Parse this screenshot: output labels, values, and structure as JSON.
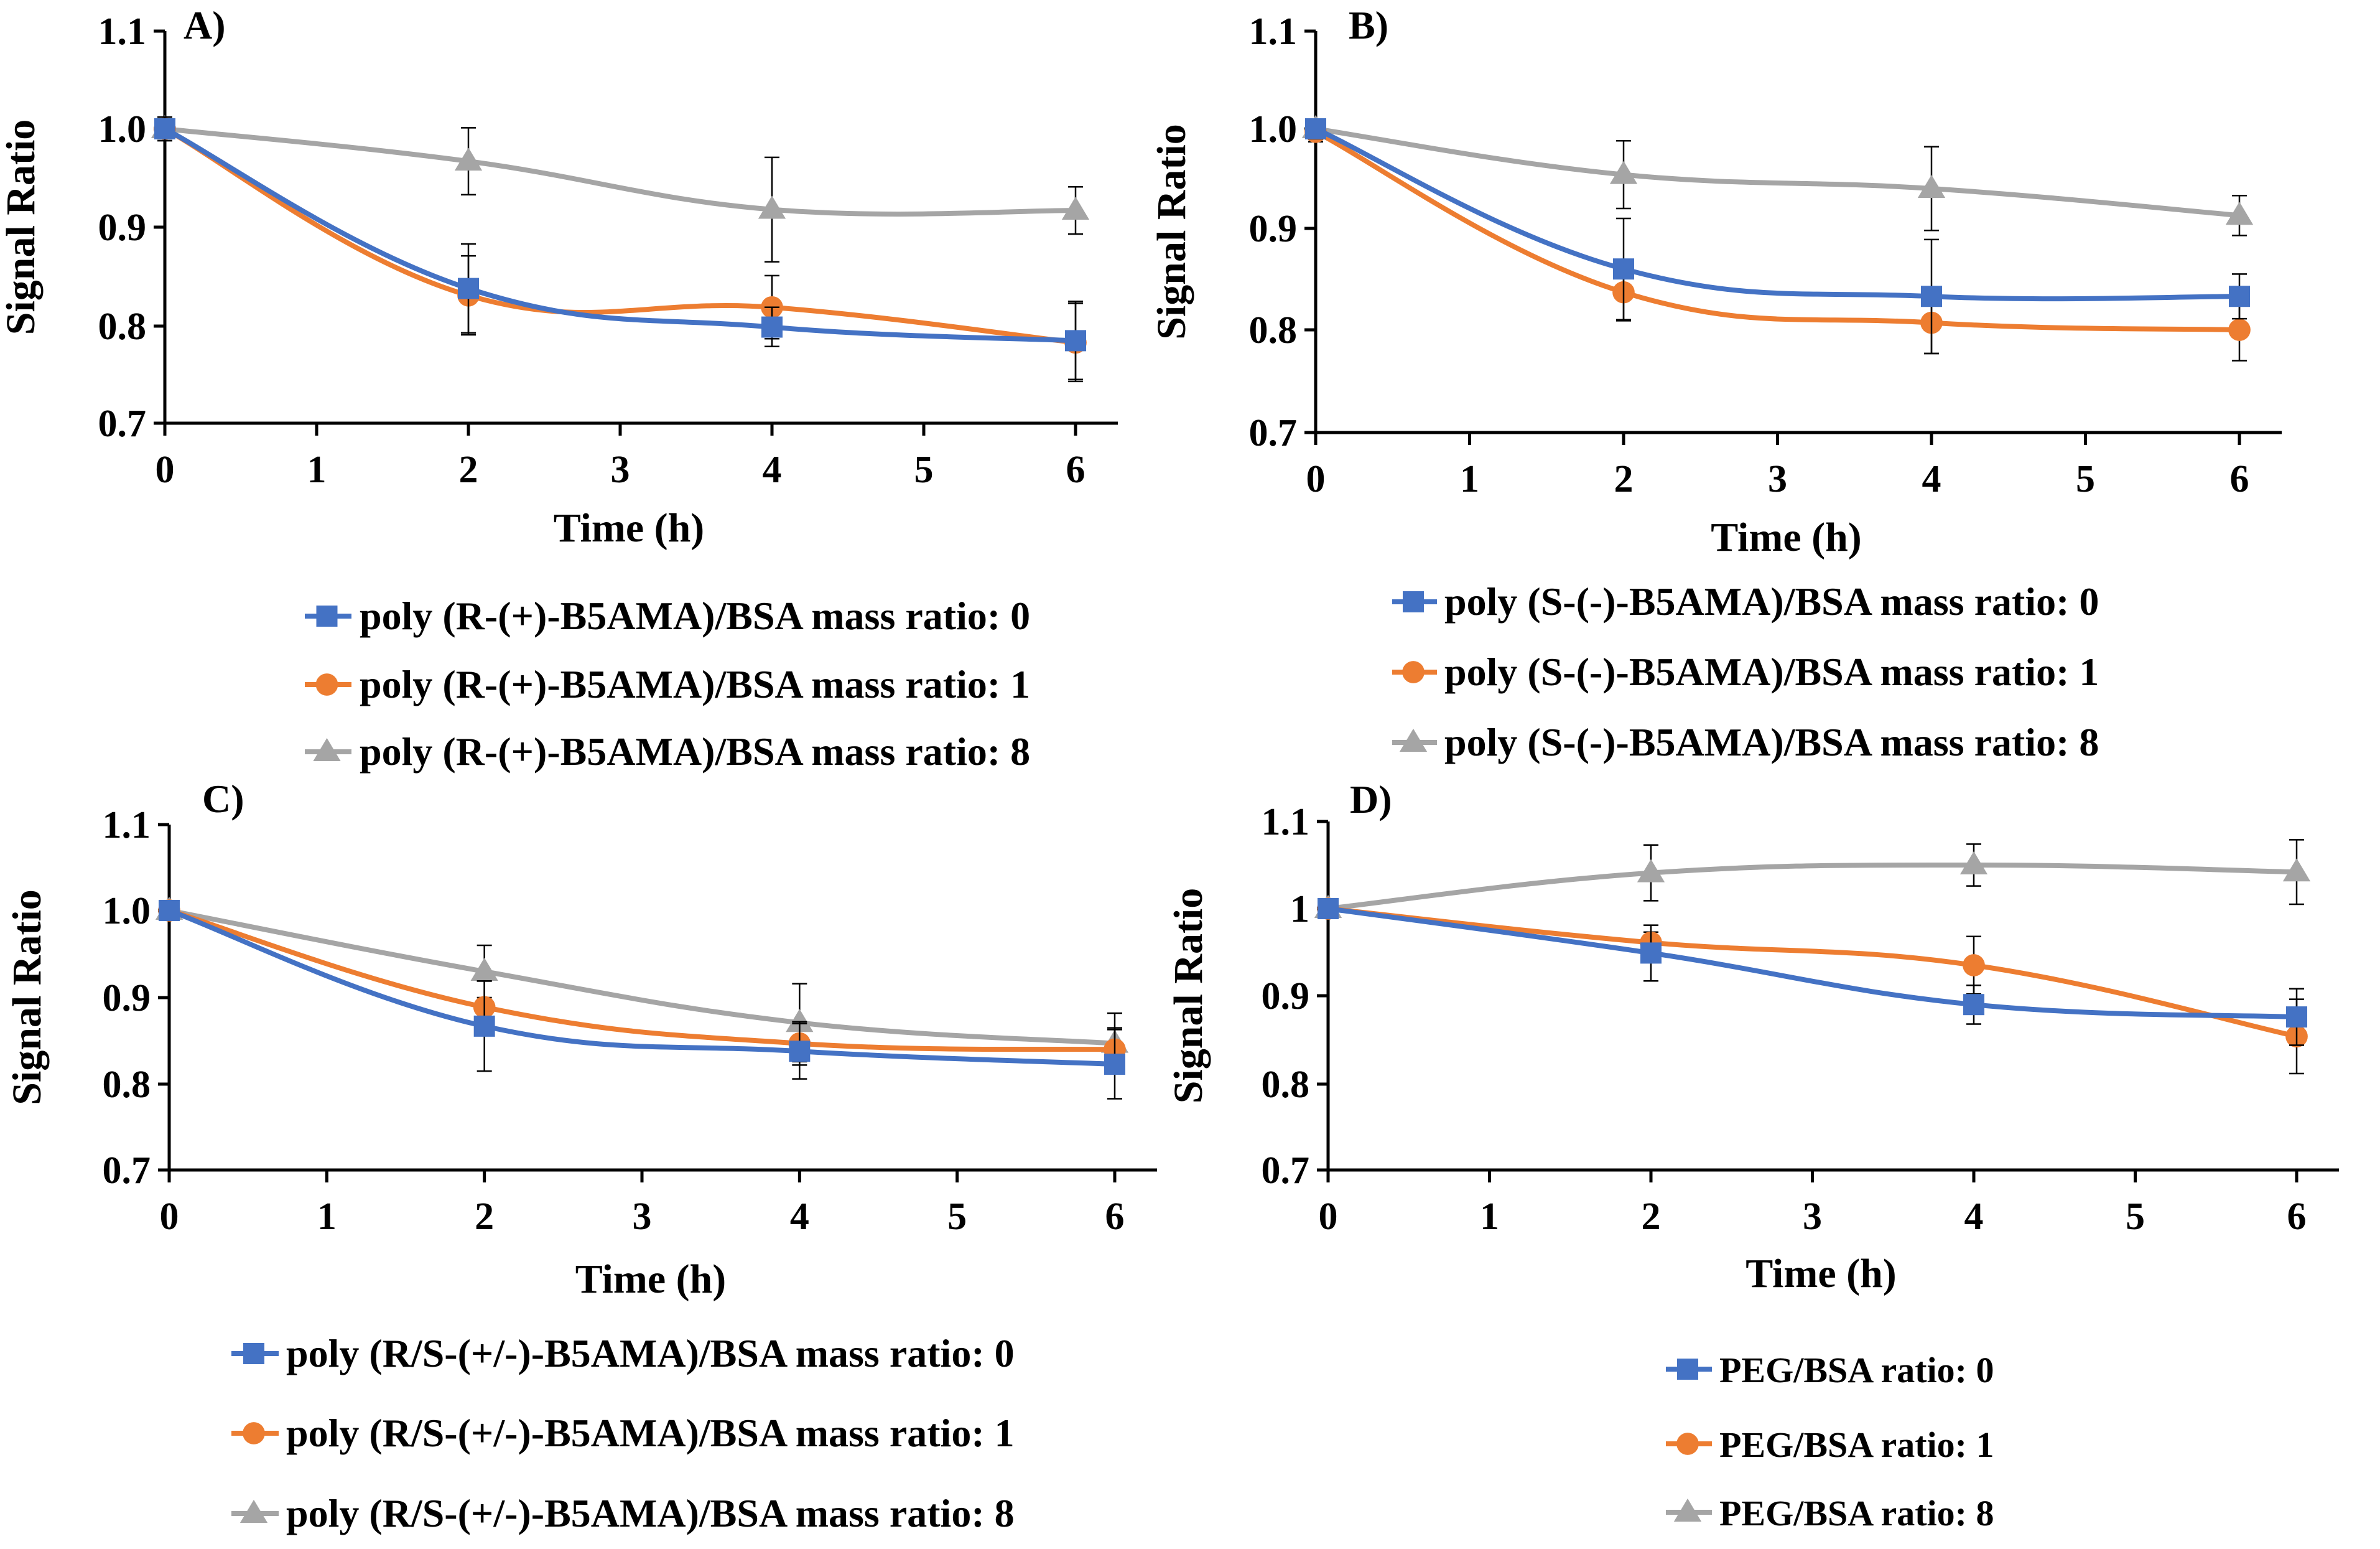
{
  "chart_data": [
    {
      "type": "line",
      "panel_label": "A)",
      "xlabel": "Time (h)",
      "ylabel": "Signal Ratio",
      "xlim": [
        0,
        6
      ],
      "ylim": [
        0.7,
        1.1
      ],
      "x_ticks": [
        "0",
        "1",
        "2",
        "3",
        "4",
        "5",
        "6"
      ],
      "y_ticks": [
        "0.7",
        "0.8",
        "0.9",
        "1.0",
        "1.1"
      ],
      "legend_position": "bottom",
      "series": [
        {
          "name": "poly (R-(+)-B5AMA)/BSA mass ratio: 0",
          "color": "#4472C4",
          "marker": "square",
          "x": [
            0,
            2,
            4,
            6
          ],
          "values": [
            1.0,
            0.838,
            0.799,
            0.785
          ],
          "errors": [
            0.012,
            0.045,
            0.02,
            0.04
          ]
        },
        {
          "name": "poly (R-(+)-B5AMA)/BSA mass ratio: 1",
          "color": "#ED7D31",
          "marker": "circle",
          "x": [
            0,
            2,
            4,
            6
          ],
          "values": [
            1.0,
            0.831,
            0.819,
            0.783
          ],
          "errors": [
            0.012,
            0.04,
            0.032,
            0.04
          ]
        },
        {
          "name": "poly (R-(+)-B5AMA)/BSA mass ratio: 8",
          "color": "#A5A5A5",
          "marker": "triangle",
          "x": [
            0,
            2,
            4,
            6
          ],
          "values": [
            1.0,
            0.967,
            0.918,
            0.917
          ],
          "errors": [
            0.01,
            0.034,
            0.053,
            0.024
          ]
        }
      ]
    },
    {
      "type": "line",
      "panel_label": "B)",
      "xlabel": "Time (h)",
      "ylabel": "Signal Ratio",
      "xlim": [
        0,
        6
      ],
      "ylim": [
        0.7,
        1.1
      ],
      "x_ticks": [
        "0",
        "1",
        "2",
        "3",
        "4",
        "5",
        "6"
      ],
      "y_ticks": [
        "0.7",
        "0.8",
        "0.9",
        "1.0",
        "1.1"
      ],
      "legend_position": "bottom",
      "series": [
        {
          "name": "poly (S-(-)-B5AMA)/BSA mass ratio: 0",
          "color": "#4472C4",
          "marker": "square",
          "x": [
            0,
            2,
            4,
            6
          ],
          "values": [
            1.0,
            0.86,
            0.833,
            0.833
          ],
          "errors": [
            0.01,
            0.05,
            0.056,
            0.022
          ]
        },
        {
          "name": "poly (S-(-)-B5AMA)/BSA mass ratio: 1",
          "color": "#ED7D31",
          "marker": "circle",
          "x": [
            0,
            2,
            4,
            6
          ],
          "values": [
            0.997,
            0.837,
            0.807,
            0.8
          ],
          "errors": [
            0.01,
            0.028,
            0.03,
            0.03
          ]
        },
        {
          "name": "poly (S-(-)-B5AMA)/BSA mass ratio: 8",
          "color": "#A5A5A5",
          "marker": "triangle",
          "x": [
            0,
            2,
            4,
            6
          ],
          "values": [
            1.0,
            0.954,
            0.94,
            0.913
          ],
          "errors": [
            0.01,
            0.034,
            0.042,
            0.02
          ]
        }
      ]
    },
    {
      "type": "line",
      "panel_label": "C)",
      "xlabel": "Time (h)",
      "ylabel": "Signal Ratio",
      "xlim": [
        0,
        6
      ],
      "ylim": [
        0.7,
        1.1
      ],
      "x_ticks": [
        "0",
        "1",
        "2",
        "3",
        "4",
        "5",
        "6"
      ],
      "y_ticks": [
        "0.7",
        "0.8",
        "0.9",
        "1.0",
        "1.1"
      ],
      "legend_position": "bottom",
      "series": [
        {
          "name": "poly (R/S-(+/-)-B5AMA)/BSA mass ratio: 0",
          "color": "#4472C4",
          "marker": "square",
          "x": [
            0,
            2,
            4,
            6
          ],
          "values": [
            1.0,
            0.867,
            0.838,
            0.823
          ],
          "errors": [
            0.01,
            0.052,
            0.032,
            0.04
          ]
        },
        {
          "name": "poly (R/S-(+/-)-B5AMA)/BSA mass ratio: 1",
          "color": "#ED7D31",
          "marker": "circle",
          "x": [
            0,
            2,
            4,
            6
          ],
          "values": [
            1.0,
            0.889,
            0.847,
            0.84
          ],
          "errors": [
            0.01,
            0.03,
            0.025,
            0.025
          ]
        },
        {
          "name": "poly (R/S-(+/-)-B5AMA)/BSA mass ratio: 8",
          "color": "#A5A5A5",
          "marker": "triangle",
          "x": [
            0,
            2,
            4,
            6
          ],
          "values": [
            1.0,
            0.93,
            0.871,
            0.847
          ],
          "errors": [
            0.01,
            0.03,
            0.045,
            0.035
          ]
        }
      ]
    },
    {
      "type": "line",
      "panel_label": "D)",
      "xlabel": "Time (h)",
      "ylabel": "Signal Ratio",
      "xlim": [
        0,
        6
      ],
      "ylim": [
        0.7,
        1.1
      ],
      "x_ticks": [
        "0",
        "1",
        "2",
        "3",
        "4",
        "5",
        "6"
      ],
      "y_ticks": [
        "0.7",
        "0.8",
        "0.9",
        "1",
        "1.1"
      ],
      "legend_position": "bottom-right",
      "series": [
        {
          "name": "PEG/BSA ratio: 0",
          "color": "#4472C4",
          "marker": "square",
          "x": [
            0,
            2,
            4,
            6
          ],
          "values": [
            1.0,
            0.949,
            0.89,
            0.876
          ],
          "errors": [
            0.005,
            0.032,
            0.022,
            0.032
          ]
        },
        {
          "name": "PEG/BSA ratio: 1",
          "color": "#ED7D31",
          "marker": "circle",
          "x": [
            0,
            2,
            4,
            6
          ],
          "values": [
            1.0,
            0.961,
            0.935,
            0.854
          ],
          "errors": [
            0.005,
            0.012,
            0.033,
            0.042
          ]
        },
        {
          "name": "PEG/BSA ratio: 8",
          "color": "#A5A5A5",
          "marker": "triangle",
          "x": [
            0,
            2,
            4,
            6
          ],
          "values": [
            1.0,
            1.041,
            1.05,
            1.042
          ],
          "errors": [
            0.005,
            0.032,
            0.024,
            0.037
          ]
        }
      ]
    }
  ]
}
